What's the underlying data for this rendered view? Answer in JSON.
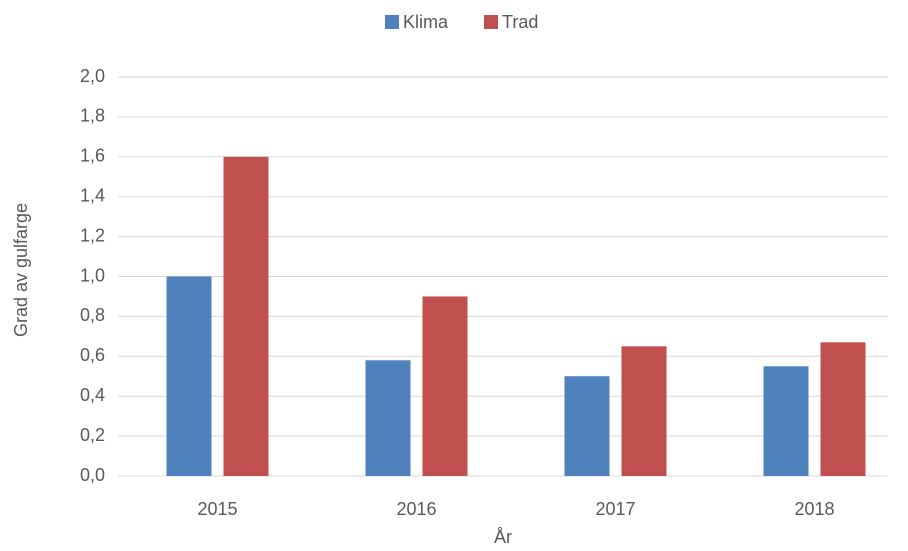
{
  "chart_data": {
    "type": "bar",
    "categories": [
      "2015",
      "2016",
      "2017",
      "2018"
    ],
    "series": [
      {
        "name": "Klima",
        "color": "#4f81bd",
        "values": [
          1.0,
          0.58,
          0.5,
          0.55
        ]
      },
      {
        "name": "Trad",
        "color": "#c0504d",
        "values": [
          1.6,
          0.9,
          0.65,
          0.67
        ]
      }
    ],
    "x_label": "År",
    "y_label": "Grad av gulfarge",
    "ylim": [
      0,
      2
    ],
    "yticks": [
      {
        "value": 0,
        "label": "0,0"
      },
      {
        "value": 0.2,
        "label": "0,2"
      },
      {
        "value": 0.4,
        "label": "0,4"
      },
      {
        "value": 0.6,
        "label": "0,6"
      },
      {
        "value": 0.8,
        "label": "0,8"
      },
      {
        "value": 1,
        "label": "1,0"
      },
      {
        "value": 1.2,
        "label": "1,2"
      },
      {
        "value": 1.4,
        "label": "1,4"
      },
      {
        "value": 1.6,
        "label": "1,6"
      },
      {
        "value": 1.8,
        "label": "1,8"
      },
      {
        "value": 2,
        "label": "2,0"
      }
    ],
    "grid": true,
    "legend": "top"
  }
}
